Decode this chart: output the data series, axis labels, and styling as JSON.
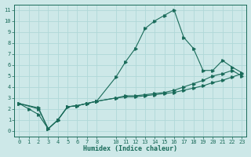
{
  "xlabel": "Humidex (Indice chaleur)",
  "bg_color": "#cde8e8",
  "line_color": "#1a6b5a",
  "grid_color": "#b0d8d8",
  "xlim": [
    -0.5,
    23.5
  ],
  "ylim": [
    -0.5,
    11.5
  ],
  "xticks": [
    0,
    1,
    2,
    3,
    4,
    5,
    6,
    7,
    8,
    10,
    11,
    12,
    13,
    14,
    15,
    16,
    17,
    18,
    19,
    20,
    21,
    22,
    23
  ],
  "yticks": [
    0,
    1,
    2,
    3,
    4,
    5,
    6,
    7,
    8,
    9,
    10,
    11
  ],
  "line1_x": [
    0,
    1,
    2,
    3,
    4,
    5,
    6,
    7,
    8,
    10,
    11,
    12,
    13,
    14,
    15,
    16,
    17,
    18,
    19,
    20,
    21,
    22,
    23
  ],
  "line1_y": [
    2.5,
    2.0,
    1.5,
    0.2,
    1.0,
    2.2,
    2.3,
    2.5,
    2.7,
    4.9,
    6.3,
    7.5,
    9.3,
    10.0,
    10.5,
    11.0,
    8.5,
    7.5,
    5.5,
    5.5,
    6.4,
    5.8,
    5.3
  ],
  "line2_x": [
    0,
    2,
    3,
    4,
    5,
    6,
    7,
    8,
    10,
    11,
    12,
    13,
    14,
    15,
    16,
    17,
    18,
    19,
    20,
    21,
    22,
    23
  ],
  "line2_y": [
    2.5,
    2.1,
    0.2,
    1.0,
    2.2,
    2.3,
    2.5,
    2.7,
    3.0,
    3.1,
    3.1,
    3.2,
    3.3,
    3.4,
    3.5,
    3.7,
    3.9,
    4.1,
    4.4,
    4.6,
    4.9,
    5.2
  ],
  "line3_x": [
    0,
    2,
    3,
    4,
    5,
    6,
    7,
    8,
    10,
    11,
    12,
    13,
    14,
    15,
    16,
    17,
    18,
    19,
    20,
    21,
    22,
    23
  ],
  "line3_y": [
    2.5,
    2.0,
    0.2,
    1.0,
    2.2,
    2.3,
    2.5,
    2.7,
    3.0,
    3.2,
    3.2,
    3.3,
    3.4,
    3.5,
    3.7,
    4.0,
    4.3,
    4.6,
    5.0,
    5.2,
    5.5,
    5.0
  ]
}
